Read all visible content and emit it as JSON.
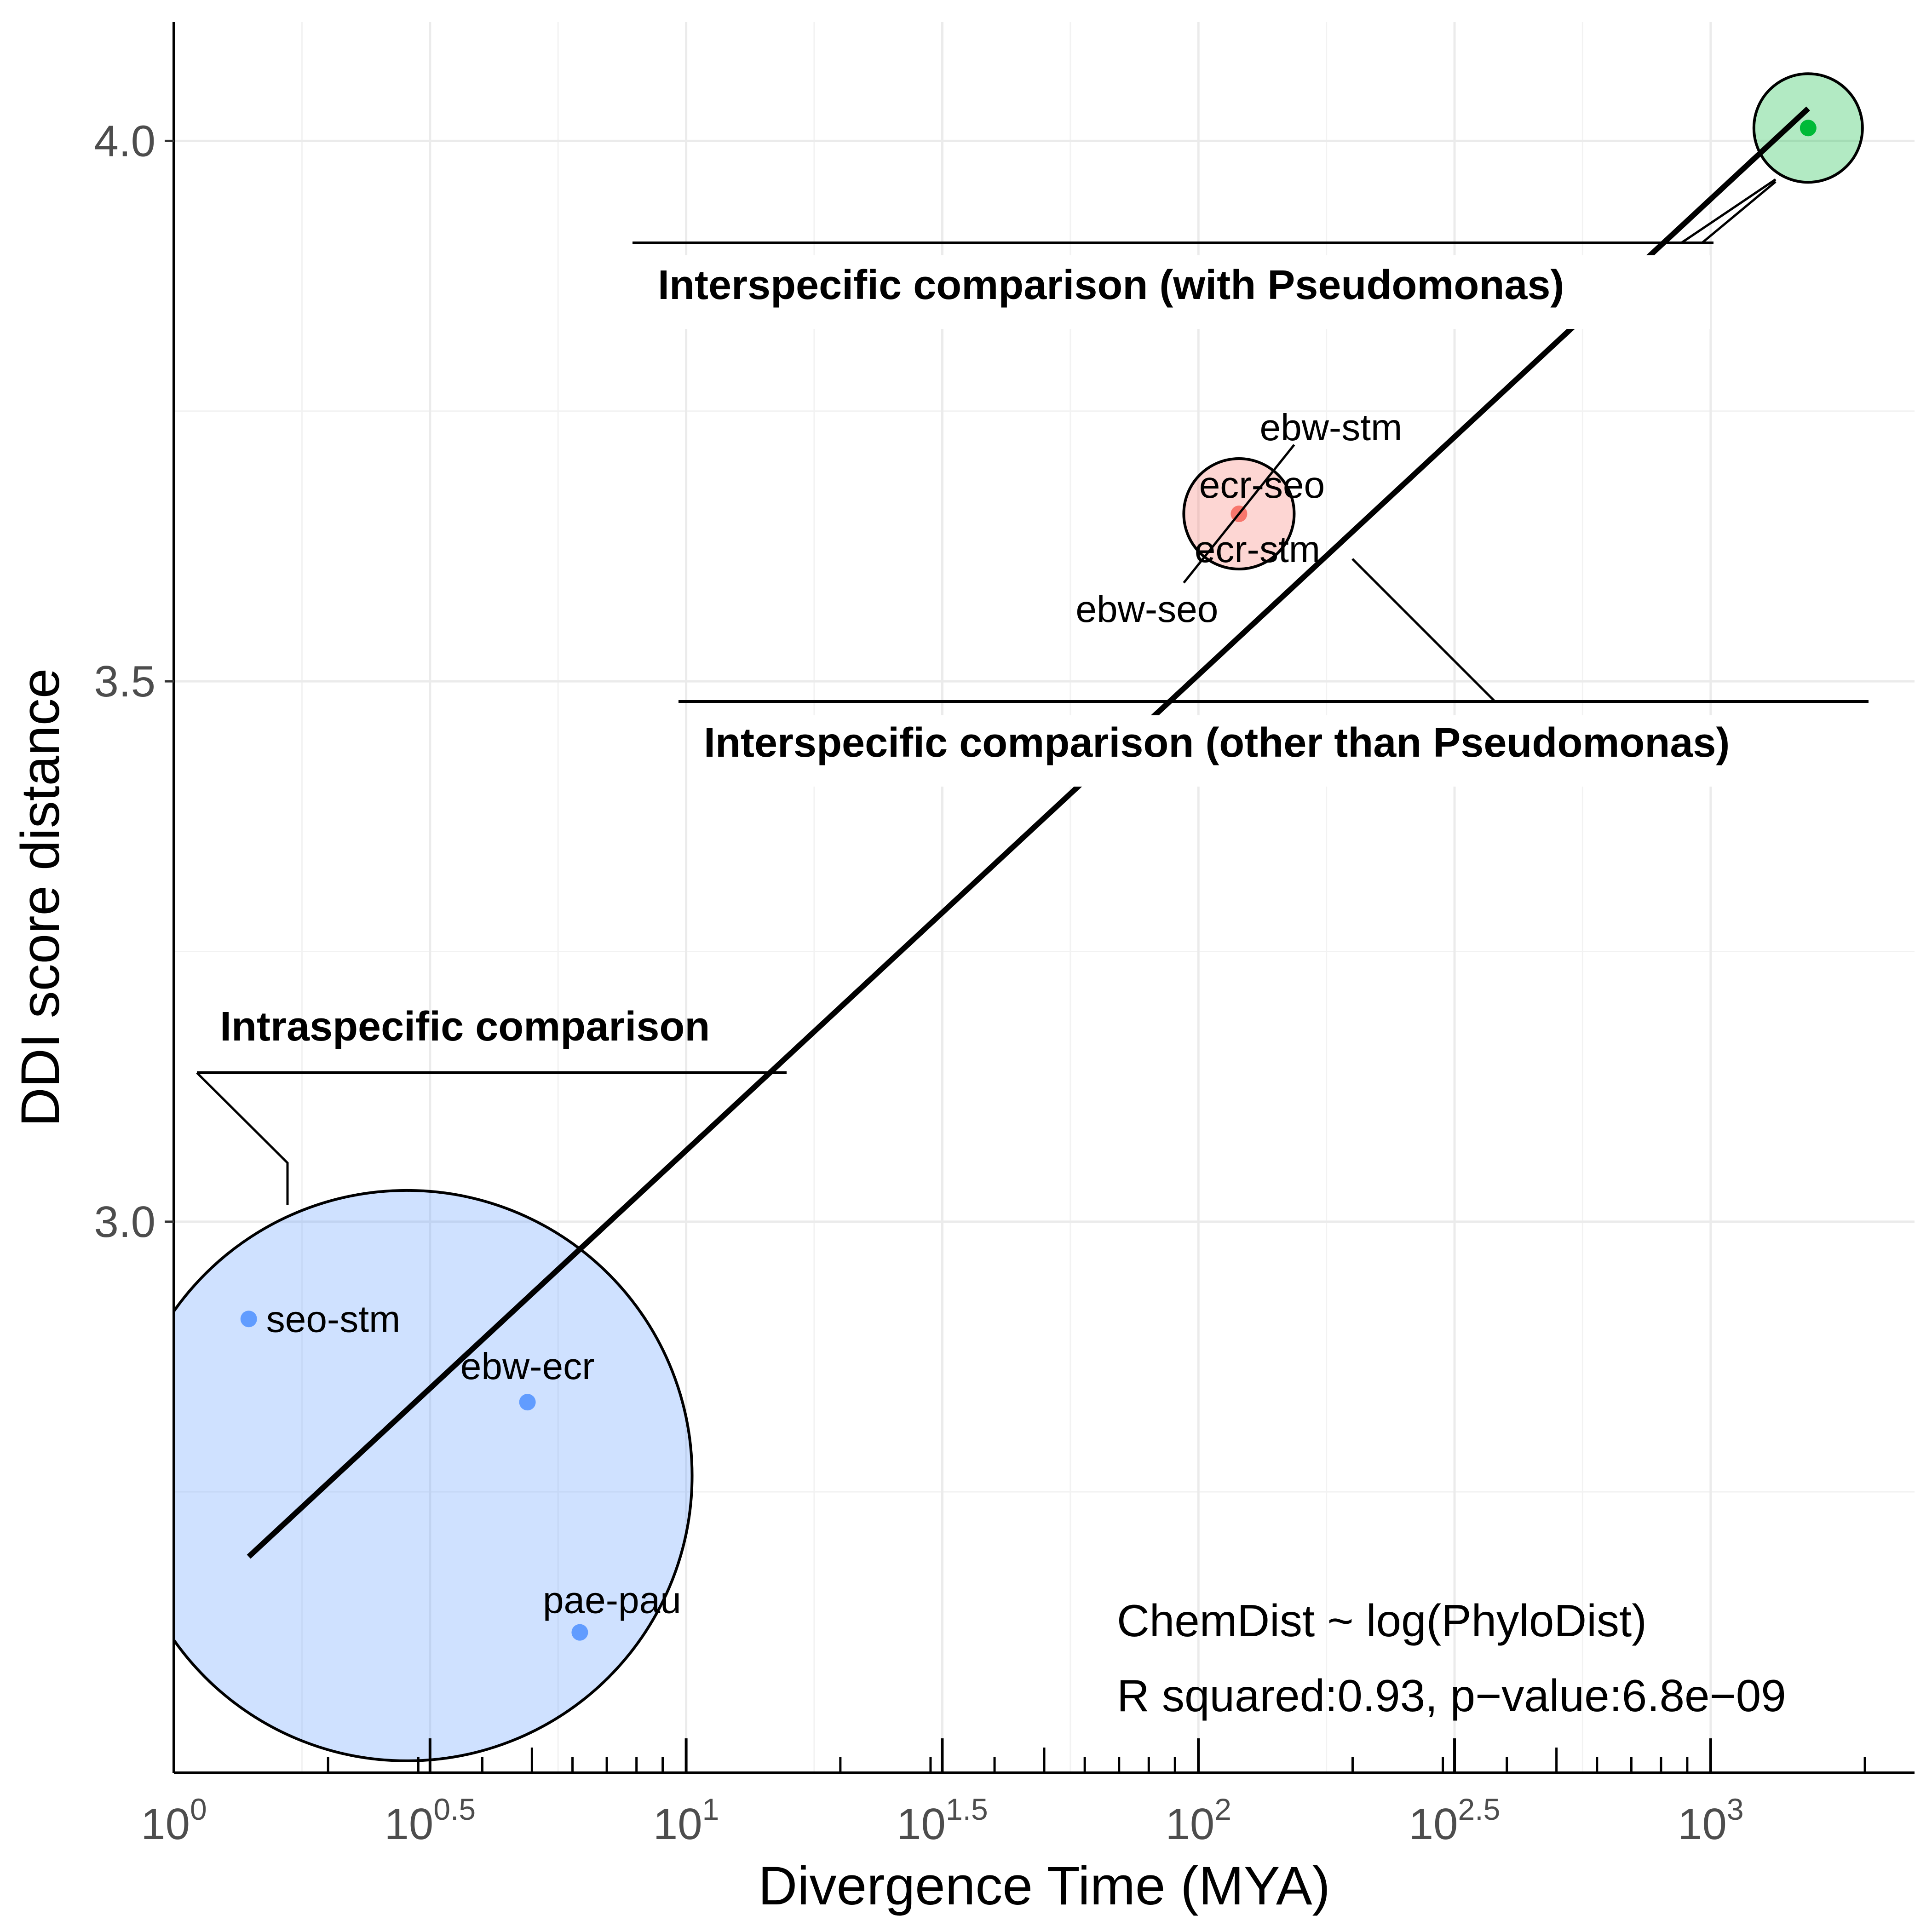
{
  "chart_data": {
    "type": "scatter",
    "title": "",
    "xlabel": "Divergence Time (MYA)",
    "ylabel": "DDI score distance",
    "x_scale": "log10",
    "xlim": [
      1,
      2500
    ],
    "ylim": [
      2.49,
      4.11
    ],
    "x_ticks": [
      {
        "value": 1,
        "base": "10",
        "exp": "0"
      },
      {
        "value": 3.1623,
        "base": "10",
        "exp": "0.5"
      },
      {
        "value": 10,
        "base": "10",
        "exp": "1"
      },
      {
        "value": 31.623,
        "base": "10",
        "exp": "1.5"
      },
      {
        "value": 100,
        "base": "10",
        "exp": "2"
      },
      {
        "value": 316.23,
        "base": "10",
        "exp": "2.5"
      },
      {
        "value": 1000,
        "base": "10",
        "exp": "3"
      }
    ],
    "y_ticks": [
      {
        "value": 3.0,
        "label": "3.0"
      },
      {
        "value": 3.5,
        "label": "3.5"
      },
      {
        "value": 4.0,
        "label": "4.0"
      }
    ],
    "grid": true,
    "legend": "none",
    "points": [
      {
        "label": "seo-stm",
        "x": 1.4,
        "y": 2.91,
        "group": "Intraspecific comparison",
        "color": "#619cff"
      },
      {
        "label": "ebw-ecr",
        "x": 4.9,
        "y": 2.833,
        "group": "Intraspecific comparison",
        "color": "#619cff"
      },
      {
        "label": "pae-pau",
        "x": 6.2,
        "y": 2.62,
        "group": "Intraspecific comparison",
        "color": "#619cff"
      },
      {
        "label": "ebw-stm",
        "x": 120,
        "y": 3.655,
        "group": "Interspecific comparison (other than Pseudomonas)",
        "color": "#f8766d"
      },
      {
        "label": "ecr-seo",
        "x": 120,
        "y": 3.655,
        "group": "Interspecific comparison (other than Pseudomonas)",
        "color": "#f8766d"
      },
      {
        "label": "ecr-stm",
        "x": 120,
        "y": 3.655,
        "group": "Interspecific comparison (other than Pseudomonas)",
        "color": "#f8766d"
      },
      {
        "label": "ebw-seo",
        "x": 120,
        "y": 3.655,
        "group": "Interspecific comparison (other than Pseudomonas)",
        "color": "#f8766d"
      },
      {
        "label": "",
        "x": 1550,
        "y": 4.012,
        "group": "Interspecific comparison (with Pseudomonas)",
        "color": "#00ba38"
      }
    ],
    "groups": [
      {
        "name": "Intraspecific comparison",
        "center_x": 2.85,
        "center_y": 2.765,
        "fill": "#619cff",
        "fill_opacity": 0.3
      },
      {
        "name": "Interspecific comparison (other than Pseudomonas)",
        "center_x": 120,
        "center_y": 3.655,
        "fill": "#f8766d",
        "fill_opacity": 0.3
      },
      {
        "name": "Interspecific comparison (with Pseudomonas)",
        "center_x": 1550,
        "center_y": 4.012,
        "fill": "#00ba38",
        "fill_opacity": 0.3
      }
    ],
    "regression_line": {
      "x": [
        1.4,
        1550
      ],
      "y": [
        2.69,
        4.03
      ]
    },
    "annotations": [
      "Intraspecific comparison",
      "Interspecific comparison (other than Pseudomonas)",
      "Interspecific comparison (with Pseudomonas)"
    ],
    "equation": "ChemDist ~ log(PhyloDist)",
    "stats": "R squared:0.93, p−value:6.8e−09"
  }
}
